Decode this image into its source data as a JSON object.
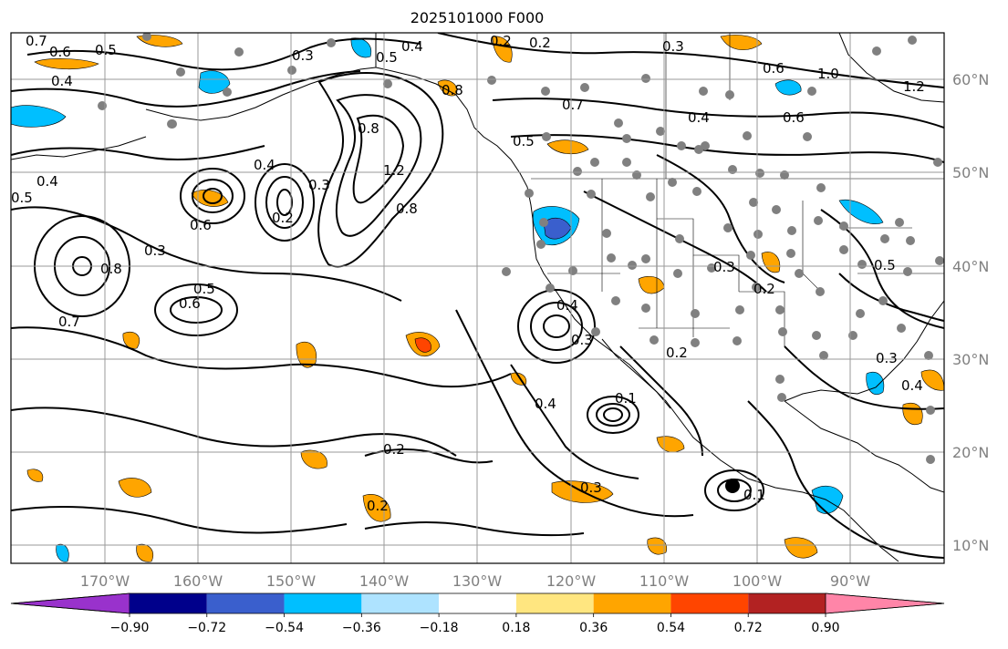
{
  "title": "2025101000 F000",
  "map": {
    "projection": "cylindrical",
    "lon_range": [
      -180,
      -80
    ],
    "lat_range": [
      8,
      65
    ],
    "gridlines": true
  },
  "lon_ticks": [
    "170°W",
    "160°W",
    "150°W",
    "140°W",
    "130°W",
    "120°W",
    "110°W",
    "100°W",
    "90°W"
  ],
  "lat_ticks": [
    "60°N",
    "50°N",
    "40°N",
    "30°N",
    "20°N",
    "10°N"
  ],
  "contour_labels": [
    "0.7",
    "0.6",
    "0.5",
    "0.4",
    "0.3",
    "0.2",
    "0.4",
    "0.5",
    "0.3",
    "0.2",
    "0.6",
    "1.0",
    "1.2",
    "0.8",
    "0.4",
    "0.5",
    "0.7",
    "0.6",
    "0.8",
    "0.4",
    "1.2",
    "0.8",
    "0.3",
    "0.2",
    "0.6",
    "0.5",
    "0.3",
    "0.8",
    "0.7",
    "0.6",
    "0.5",
    "0.4",
    "0.3",
    "0.2",
    "0.5",
    "0.4",
    "0.3",
    "0.2",
    "0.1",
    "0.2",
    "0.4",
    "0.3",
    "0.1",
    "0.2",
    "0.4",
    "0.3"
  ],
  "colorbar": {
    "labels": [
      "−0.90",
      "−0.72",
      "−0.54",
      "−0.36",
      "−0.18",
      "0.18",
      "0.36",
      "0.54",
      "0.72",
      "0.90"
    ],
    "colors": [
      "#9932cc",
      "#00008b",
      "#3a5fcd",
      "#00bfff",
      "#aee3ff",
      "#ffffff",
      "#ffe680",
      "#ffa500",
      "#ff4500",
      "#b22222",
      "#ff85a8"
    ]
  },
  "colors": {
    "land_outline": "#000000",
    "stations": "#808080",
    "grid": "#9a9a9a"
  }
}
